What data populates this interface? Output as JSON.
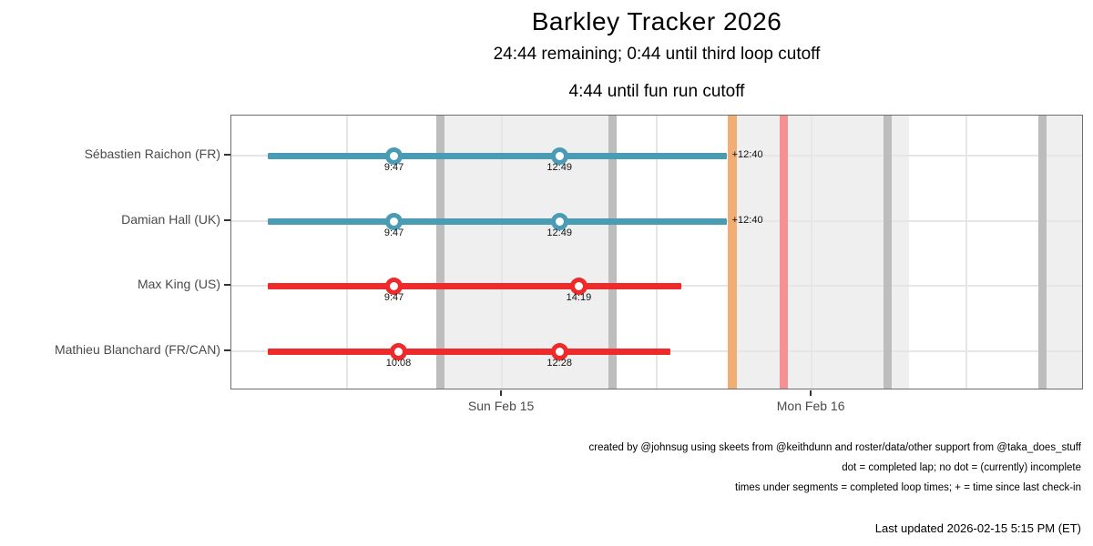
{
  "title": "Barkley Tracker 2026",
  "subtitle1": "24:44 remaining; 0:44 until third loop cutoff",
  "subtitle2": "4:44 until fun run cutoff",
  "colors": {
    "active_bar": "#4a9cb5",
    "stopped_bar": "#ee2a2a",
    "night_band": "#efefef",
    "gridline": "#e6e6e6",
    "cutoff_gray": "#bdbdbd",
    "cutoff_orange": "#f2ad74",
    "cutoff_pink": "#f59193",
    "axis_text": "#4a4a4a",
    "panel_border": "#6e6e6e"
  },
  "chart_data": {
    "type": "timeline",
    "x_axis": {
      "unit": "hours elapsed since race start",
      "domain_hours": [
        -2.8,
        63.2
      ],
      "ticks": [
        {
          "label": "Sun Feb 15",
          "h": 18.15
        },
        {
          "label": "Mon Feb 16",
          "h": 42.15
        }
      ],
      "gridline_hours": [
        6.15,
        18.15,
        30.15,
        42.15,
        54.15
      ]
    },
    "runners": [
      {
        "name": "Sébastien Raichon (FR)",
        "status": "active",
        "start_h": 0,
        "end_h": 35.55,
        "laps": [
          {
            "label": "9:47",
            "h": 9.78
          },
          {
            "label": "12:49",
            "h": 22.6
          }
        ],
        "annotation": "+12:40"
      },
      {
        "name": "Damian Hall (UK)",
        "status": "active",
        "start_h": 0,
        "end_h": 35.55,
        "laps": [
          {
            "label": "9:47",
            "h": 9.78
          },
          {
            "label": "12:49",
            "h": 22.6
          }
        ],
        "annotation": "+12:40"
      },
      {
        "name": "Max King (US)",
        "status": "stopped",
        "start_h": 0,
        "end_h": 32.05,
        "laps": [
          {
            "label": "9:47",
            "h": 9.78
          },
          {
            "label": "14:19",
            "h": 24.1
          }
        ],
        "annotation": null
      },
      {
        "name": "Mathieu Blanchard (FR/CAN)",
        "status": "stopped",
        "start_h": 0,
        "end_h": 31.2,
        "laps": [
          {
            "label": "10:08",
            "h": 10.13
          },
          {
            "label": "12:28",
            "h": 22.6
          }
        ],
        "annotation": null
      }
    ],
    "reference_lines": [
      {
        "h": 13.35,
        "type": "gray"
      },
      {
        "h": 26.7,
        "type": "gray"
      },
      {
        "h": 48.0,
        "type": "gray"
      },
      {
        "h": 60.0,
        "type": "gray"
      },
      {
        "h": 36.0,
        "type": "orange"
      },
      {
        "h": 40.0,
        "type": "pink"
      }
    ],
    "night_bands": [
      {
        "from_h": 13.4,
        "to_h": 27.0
      },
      {
        "from_h": 35.95,
        "to_h": 49.7
      },
      {
        "from_h": 59.75,
        "to_h": 66.2
      }
    ]
  },
  "footer": {
    "line1": "created by @johnsug using skeets from @keithdunn and roster/data/other support from @taka_does_stuff",
    "line2": "dot = completed lap; no dot = (currently) incomplete",
    "line3": "times under segments = completed loop times; + = time since last check-in",
    "last_updated": "Last updated 2026-02-15 5:15 PM (ET)"
  }
}
